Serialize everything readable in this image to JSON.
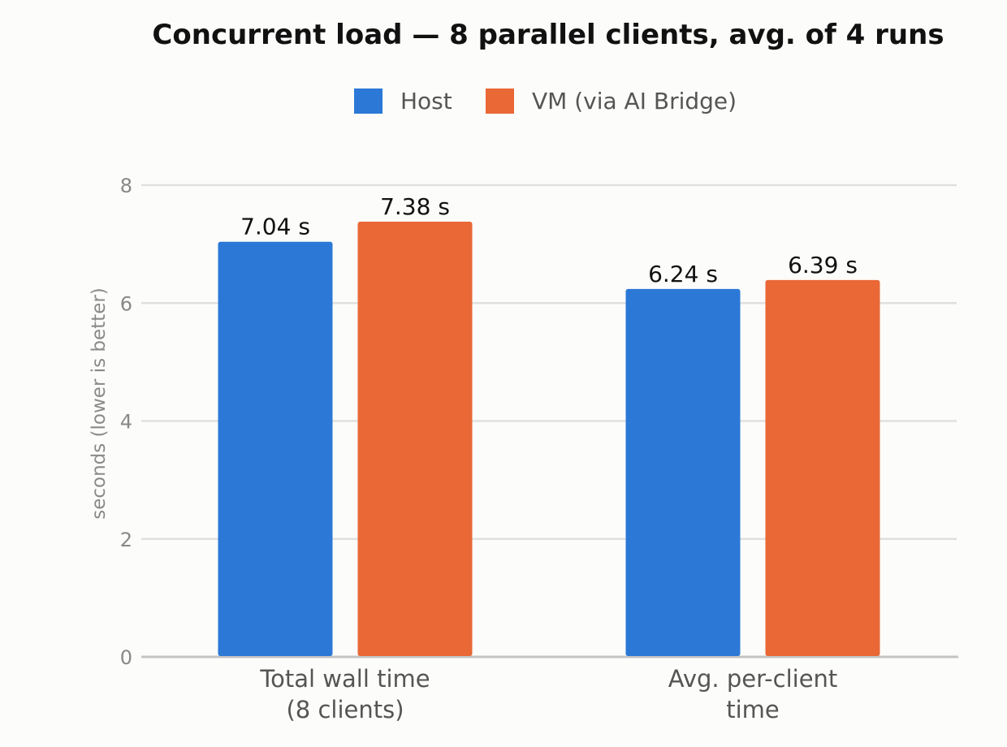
{
  "chart_data": {
    "type": "bar",
    "title": "Concurrent load — 8 parallel clients, avg. of 4 runs",
    "xlabel": "",
    "ylabel": "seconds (lower is better)",
    "categories": [
      [
        "Total wall time",
        "(8 clients)"
      ],
      [
        "Avg. per-client",
        "time"
      ]
    ],
    "series": [
      {
        "name": "Host",
        "color": "#2b78d6",
        "values": [
          7.04,
          6.24
        ],
        "labels": [
          "7.04 s",
          "6.24 s"
        ]
      },
      {
        "name": "VM (via AI Bridge)",
        "color": "#e96836",
        "values": [
          7.38,
          6.39
        ],
        "labels": [
          "7.38 s",
          "6.39 s"
        ]
      }
    ],
    "ylim": [
      0,
      8
    ],
    "yticks": [
      0,
      2,
      4,
      6,
      8
    ],
    "grid": true,
    "legend_position": "top-center"
  }
}
